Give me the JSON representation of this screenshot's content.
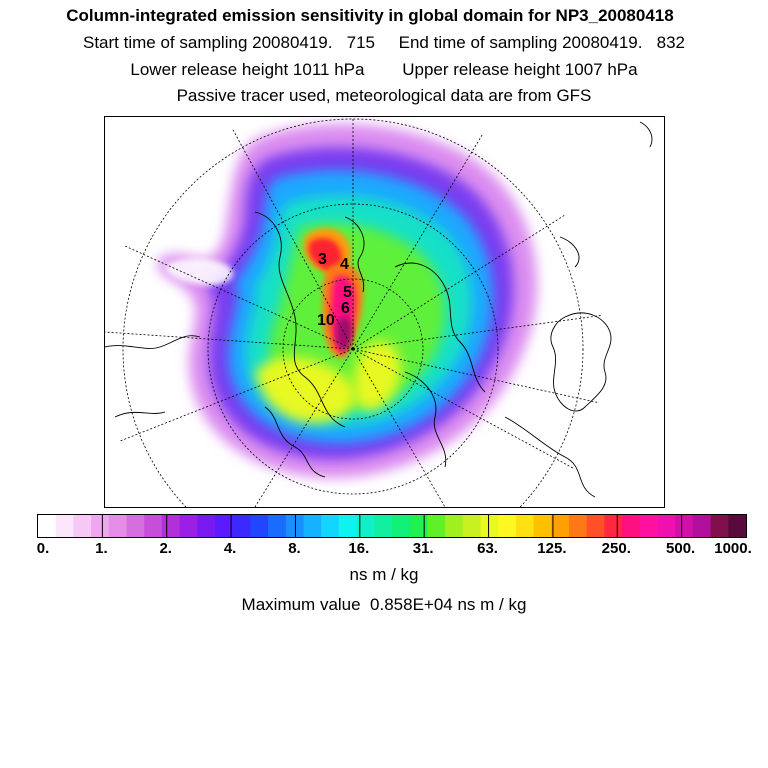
{
  "header": {
    "title": "Column-integrated emission sensitivity in global domain for NP3_20080418",
    "sampling": "Start time of sampling 20080419.   715     End time of sampling 20080419.   832",
    "release": "Lower release height 1011 hPa        Upper release height 1007 hPa",
    "tracer": "Passive tracer used, meteorological data are from GFS"
  },
  "map": {
    "labels": [
      "3",
      "4",
      "5",
      "6",
      "10"
    ]
  },
  "colorbar": {
    "tick_labels": [
      "0.",
      "1.",
      "2.",
      "4.",
      "8.",
      "16.",
      "31.",
      "63.",
      "125.",
      "250.",
      "500.",
      "1000."
    ],
    "colors": [
      "#ffffff",
      "#fbe6fb",
      "#f5c8f5",
      "#eea8f0",
      "#e38ce8",
      "#d56fe0",
      "#c54fd8",
      "#b230d8",
      "#9a20e6",
      "#7a18f0",
      "#5a1cff",
      "#3a2aff",
      "#2046ff",
      "#1a6cff",
      "#1890ff",
      "#16b2ff",
      "#12d6ff",
      "#10f2f0",
      "#10f0c8",
      "#10f0a0",
      "#10f078",
      "#20f050",
      "#60f028",
      "#a0f020",
      "#c8f020",
      "#e8f820",
      "#fff820",
      "#ffe010",
      "#ffc000",
      "#ffa000",
      "#ff7818",
      "#ff5028",
      "#ff2840",
      "#ff1080",
      "#ff10a0",
      "#f010b0",
      "#d010a8",
      "#b0109c",
      "#80104c",
      "#5a0a3a"
    ],
    "units": "ns m / kg"
  },
  "footer": {
    "maximum": "Maximum value  0.858E+04 ns m / kg"
  }
}
